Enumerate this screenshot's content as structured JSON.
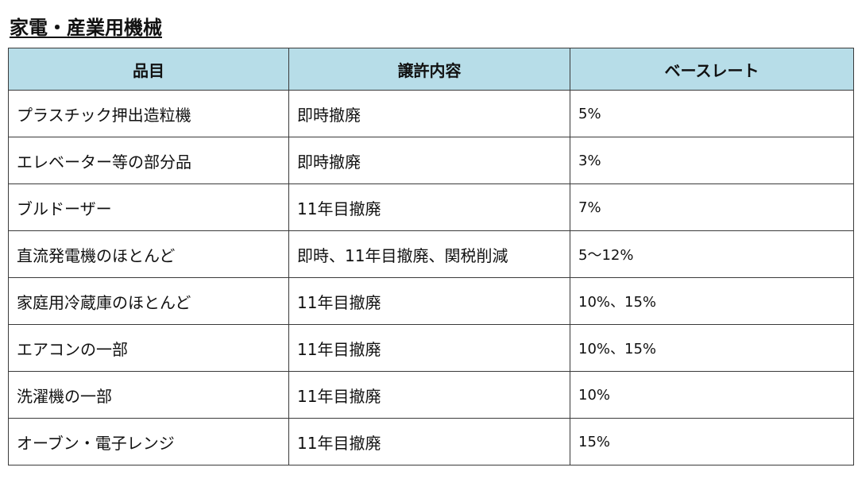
{
  "title": "家電・産業用機械",
  "table": {
    "headers": [
      "品目",
      "譲許内容",
      "ベースレート"
    ],
    "rows": [
      [
        "プラスチック押出造粒機",
        "即時撤廃",
        "5%"
      ],
      [
        "エレベーター等の部分品",
        "即時撤廃",
        "3%"
      ],
      [
        "ブルドーザー",
        "11年目撤廃",
        "7%"
      ],
      [
        "直流発電機のほとんど",
        "即時、11年目撤廃、関税削減",
        "5～12%"
      ],
      [
        "家庭用冷蔵庫のほとんど",
        "11年目撤廃",
        "10%、15%"
      ],
      [
        "エアコンの一部",
        "11年目撤廃",
        "10%、15%"
      ],
      [
        "洗濯機の一部",
        "11年目撤廃",
        "10%"
      ],
      [
        "オーブン・電子レンジ",
        "11年目撤廃",
        "15%"
      ]
    ]
  }
}
